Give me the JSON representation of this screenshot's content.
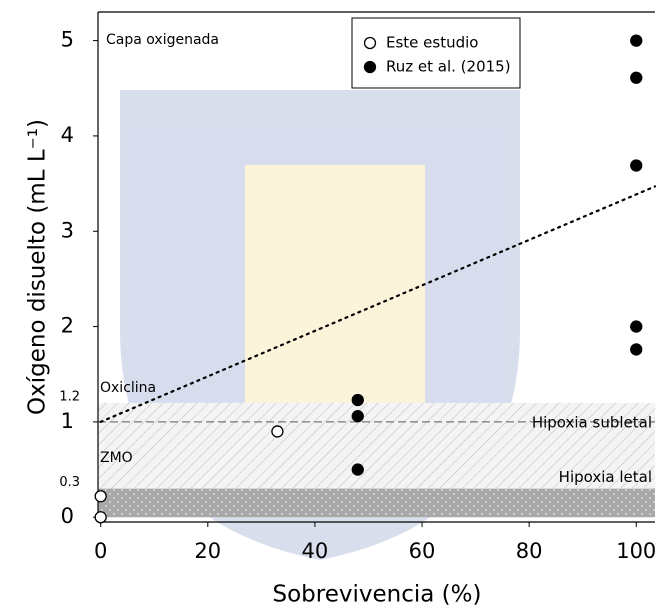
{
  "chart_data": {
    "type": "scatter",
    "x_label": "Sobrevivencia (%)",
    "y_label": "Oxígeno disuelto (mL L⁻¹)",
    "xlim": [
      -0.5,
      103.5
    ],
    "ylim": [
      -0.05,
      5.3
    ],
    "xticks": [
      0,
      20,
      40,
      60,
      80,
      100
    ],
    "yticks": [
      0,
      1,
      2,
      3,
      4,
      5
    ],
    "extra_yticks": [
      0.3,
      1.2
    ],
    "series": [
      {
        "name": "Este estudio",
        "color": "#ffffff",
        "x": [
          0,
          0,
          33
        ],
        "values": [
          0.22,
          0.0,
          0.9
        ]
      },
      {
        "name": "Ruz et al. (2015)",
        "color": "#000000",
        "x": [
          48,
          48,
          48,
          100,
          100,
          100,
          100,
          100
        ],
        "values": [
          1.23,
          1.06,
          0.5,
          5.0,
          4.61,
          3.69,
          2.0,
          1.76
        ]
      }
    ],
    "trendline": {
      "x": [
        0,
        103.5
      ],
      "values": [
        1.0,
        3.47
      ]
    },
    "reference_line": 1,
    "hatched_zone": [
      0.3,
      1.2
    ],
    "dotted_zone": [
      0,
      0.3
    ],
    "annotations": [
      "Capa oxigenada",
      "Oxiclina",
      "ZMO",
      "Hipoxia subletal",
      "Hipoxia letal"
    ],
    "legend": "upper center"
  }
}
